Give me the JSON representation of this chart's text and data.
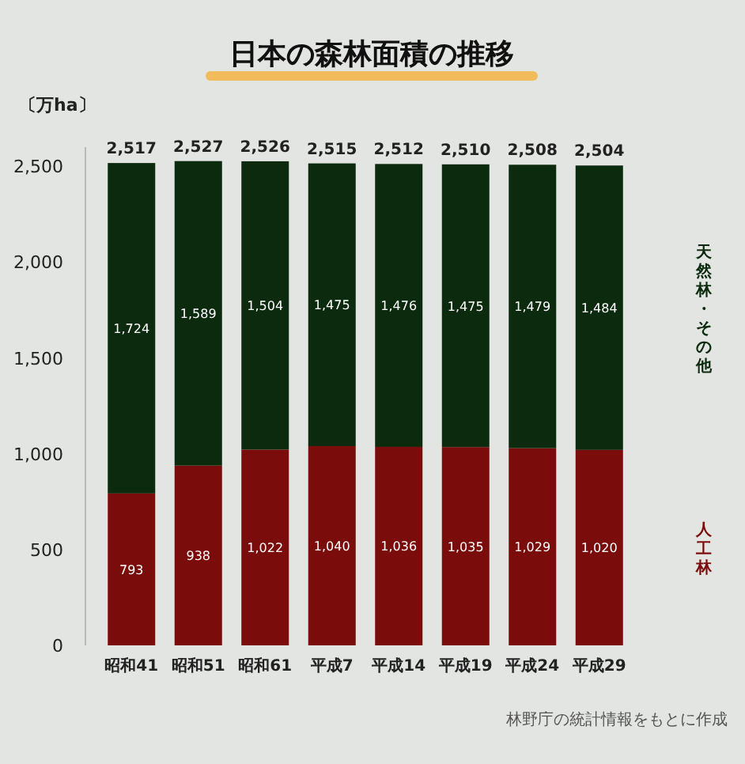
{
  "chart_data": {
    "type": "bar",
    "title": "日本の森林面積の推移",
    "ylabel": "〔万ha〕",
    "stacked": true,
    "categories": [
      "昭和41",
      "昭和51",
      "昭和61",
      "平成7",
      "平成14",
      "平成19",
      "平成24",
      "平成29"
    ],
    "series": [
      {
        "name": "人工林",
        "color": "#7a0c0c",
        "values": [
          793,
          938,
          1022,
          1040,
          1036,
          1035,
          1029,
          1020
        ],
        "value_labels": [
          "793",
          "938",
          "1,022",
          "1,040",
          "1,036",
          "1,035",
          "1,029",
          "1,020"
        ]
      },
      {
        "name": "天然林・その他",
        "color": "#0c2a0e",
        "values": [
          1724,
          1589,
          1504,
          1475,
          1476,
          1475,
          1479,
          1484
        ],
        "value_labels": [
          "1,724",
          "1,589",
          "1,504",
          "1,475",
          "1,476",
          "1,475",
          "1,479",
          "1,484"
        ]
      }
    ],
    "totals": [
      "2,517",
      "2,527",
      "2,526",
      "2,515",
      "2,512",
      "2,510",
      "2,508",
      "2,504"
    ],
    "ylim": [
      0,
      2600
    ],
    "yticks": [
      0,
      {
        "value": 500,
        "label": "500"
      },
      {
        "value": 1000,
        "label": "1,000"
      },
      {
        "value": 1500,
        "label": "1,500"
      },
      {
        "value": 2000,
        "label": "2,000"
      },
      {
        "value": 2500,
        "label": "2,500"
      }
    ],
    "annotations": [
      "林野庁の統計情報をもとに作成"
    ]
  }
}
